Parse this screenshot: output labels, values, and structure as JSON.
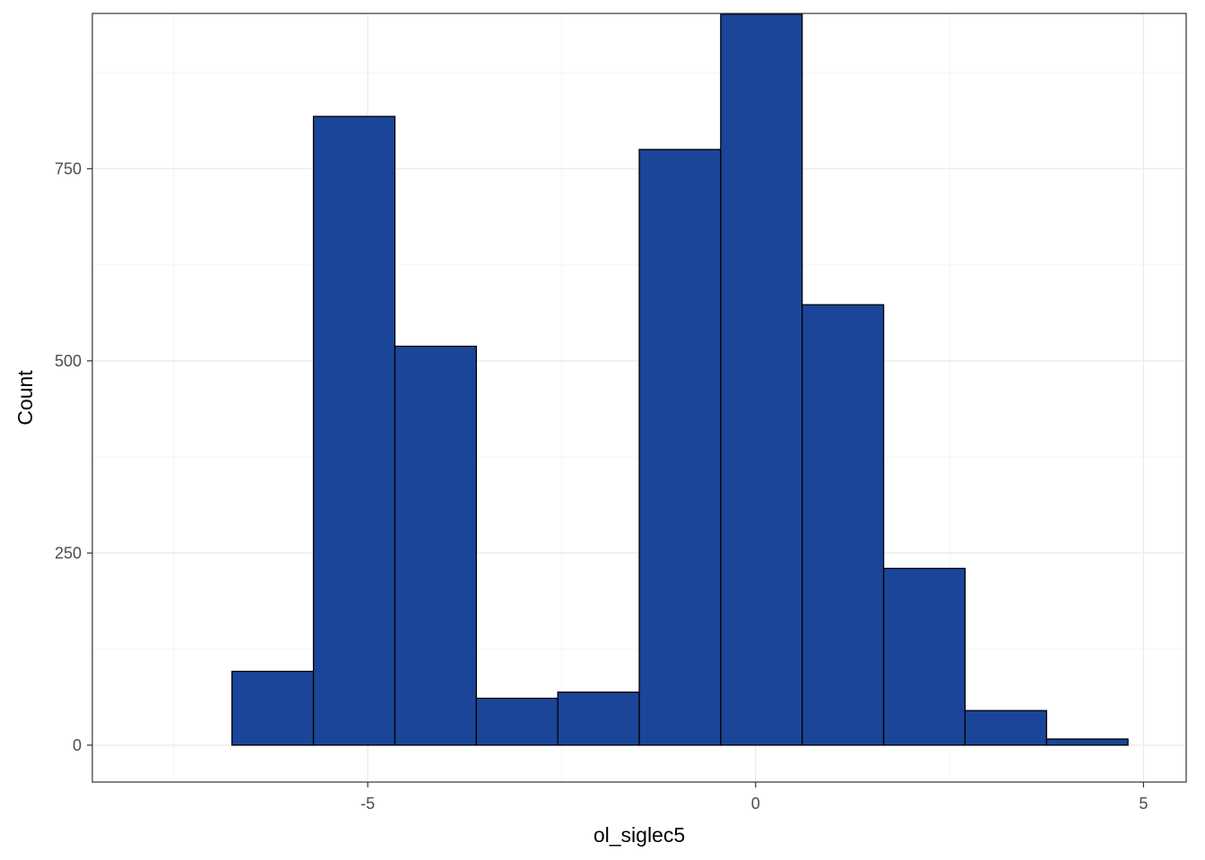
{
  "chart_data": {
    "type": "bar",
    "subtype": "histogram",
    "xlabel": "ol_siglec5",
    "ylabel": "Count",
    "xlim": [
      -8.55,
      5.55
    ],
    "ylim": [
      -48,
      952
    ],
    "x_ticks": [
      {
        "value": -5,
        "label": "-5"
      },
      {
        "value": 0,
        "label": "0"
      },
      {
        "value": 5,
        "label": "5"
      }
    ],
    "y_ticks": [
      {
        "value": 0,
        "label": "0"
      },
      {
        "value": 250,
        "label": "250"
      },
      {
        "value": 500,
        "label": "500"
      },
      {
        "value": 750,
        "label": "750"
      }
    ],
    "x_minor_ticks": [
      -7.5,
      -2.5,
      2.5
    ],
    "y_minor_ticks": [
      125,
      375,
      625,
      875
    ],
    "grid": true,
    "theme": "bw",
    "bars": [
      {
        "x0": -7.8,
        "x1": -6.75,
        "count": 0
      },
      {
        "x0": -6.75,
        "x1": -5.7,
        "count": 96
      },
      {
        "x0": -5.7,
        "x1": -4.65,
        "count": 818
      },
      {
        "x0": -4.65,
        "x1": -3.6,
        "count": 519
      },
      {
        "x0": -3.6,
        "x1": -2.55,
        "count": 61
      },
      {
        "x0": -2.55,
        "x1": -1.5,
        "count": 69
      },
      {
        "x0": -1.5,
        "x1": -0.45,
        "count": 775
      },
      {
        "x0": -0.45,
        "x1": 0.6,
        "count": 951
      },
      {
        "x0": 0.6,
        "x1": 1.65,
        "count": 573
      },
      {
        "x0": 1.65,
        "x1": 2.7,
        "count": 230
      },
      {
        "x0": 2.7,
        "x1": 3.75,
        "count": 45
      },
      {
        "x0": 3.75,
        "x1": 4.8,
        "count": 8
      }
    ],
    "colors": {
      "bar_fill": "#1A4599",
      "bar_outline": "#000000",
      "panel_border": "#333333",
      "grid_major": "#EBEBEB",
      "grid_minor": "#F5F5F5",
      "tick_label": "#4D4D4D"
    }
  }
}
